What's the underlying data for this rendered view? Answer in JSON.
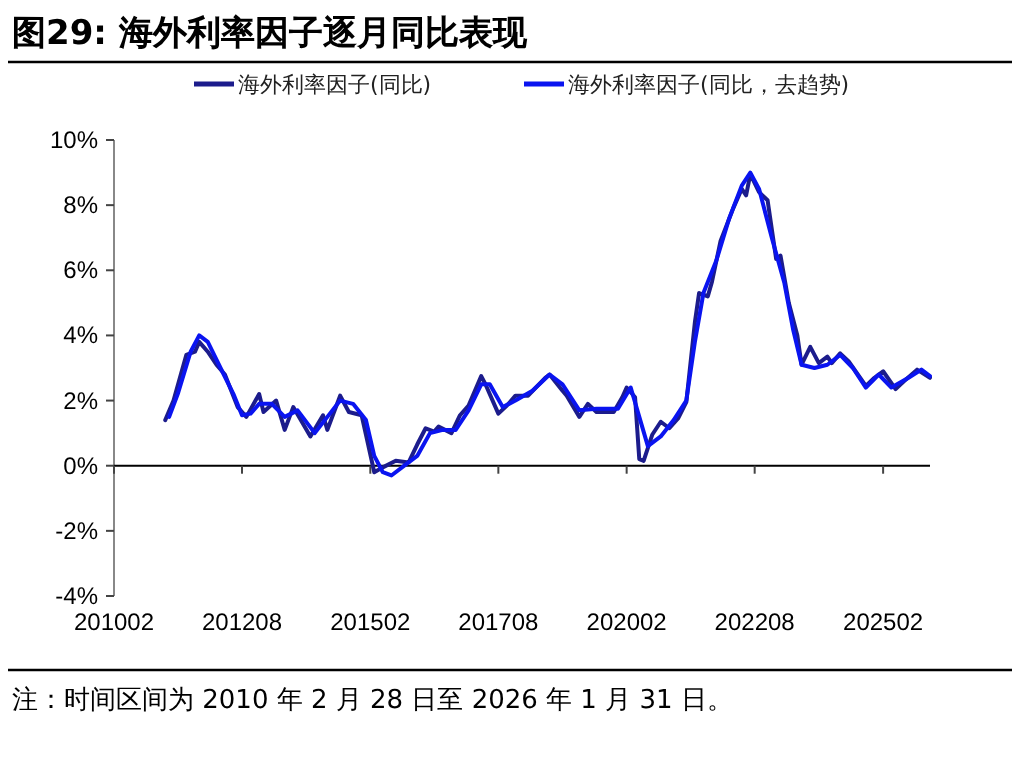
{
  "chart_data": {
    "type": "line",
    "title": "图29:  海外利率因子逐月同比表现",
    "annotations": [
      "注：时间区间为 2010 年 2 月 28 日至 2026 年 1 月 31 日。"
    ],
    "xlim": [
      "2010-02",
      "2026-01"
    ],
    "xticks": [
      {
        "value": "2010-02",
        "label": "201002"
      },
      {
        "value": "2012-08",
        "label": "201208"
      },
      {
        "value": "2015-02",
        "label": "201502"
      },
      {
        "value": "2017-08",
        "label": "201708"
      },
      {
        "value": "2020-02",
        "label": "202002"
      },
      {
        "value": "2022-08",
        "label": "202208"
      },
      {
        "value": "2025-02",
        "label": "202502"
      }
    ],
    "ylim": [
      -4,
      10
    ],
    "yticks": [
      {
        "value": -4,
        "label": "-4%"
      },
      {
        "value": -2,
        "label": "-2%"
      },
      {
        "value": 0,
        "label": "0%"
      },
      {
        "value": 2,
        "label": "2%"
      },
      {
        "value": 4,
        "label": "4%"
      },
      {
        "value": 6,
        "label": "6%"
      },
      {
        "value": 8,
        "label": "8%"
      },
      {
        "value": 10,
        "label": "10%"
      }
    ],
    "legend": "top",
    "marker": "none",
    "line_style": "solid",
    "series": [
      {
        "name": "海外利率因子(同比)",
        "color": "#1c1c8c",
        "x": [
          "2011-02",
          "2011-04",
          "2011-07",
          "2011-09",
          "2011-10",
          "2011-12",
          "2012-02",
          "2012-04",
          "2012-07",
          "2012-09",
          "2012-12",
          "2013-01",
          "2013-04",
          "2013-06",
          "2013-08",
          "2013-12",
          "2014-03",
          "2014-04",
          "2014-07",
          "2014-09",
          "2014-12",
          "2015-01",
          "2015-03",
          "2015-05",
          "2015-08",
          "2015-11",
          "2016-01",
          "2016-03",
          "2016-05",
          "2016-06",
          "2016-09",
          "2016-11",
          "2017-01",
          "2017-04",
          "2017-05",
          "2017-08",
          "2017-10",
          "2017-12",
          "2018-03",
          "2018-07",
          "2018-08",
          "2018-11",
          "2018-12",
          "2019-03",
          "2019-05",
          "2019-07",
          "2019-11",
          "2020-01",
          "2020-02",
          "2020-04",
          "2020-05",
          "2020-06",
          "2020-08",
          "2020-10",
          "2020-12",
          "2021-02",
          "2021-04",
          "2021-06",
          "2021-07",
          "2021-09",
          "2021-10",
          "2021-12",
          "2022-03",
          "2022-05",
          "2022-06",
          "2022-07",
          "2022-09",
          "2022-11",
          "2023-01",
          "2023-02",
          "2023-04",
          "2023-06",
          "2023-07",
          "2023-09",
          "2023-11",
          "2024-01",
          "2024-02",
          "2024-04",
          "2024-06",
          "2024-10",
          "2024-12",
          "2025-02",
          "2025-05",
          "2025-07",
          "2025-10",
          "2026-01"
        ],
        "values": [
          1.4,
          2.0,
          3.4,
          3.5,
          3.8,
          3.5,
          3.1,
          2.8,
          1.8,
          1.5,
          2.2,
          1.65,
          2.0,
          1.1,
          1.8,
          0.9,
          1.55,
          1.1,
          2.15,
          1.65,
          1.55,
          0.95,
          -0.2,
          -0.05,
          0.15,
          0.1,
          0.65,
          1.15,
          1.05,
          1.2,
          1.0,
          1.55,
          1.85,
          2.75,
          2.5,
          1.6,
          1.85,
          2.15,
          2.15,
          2.7,
          2.8,
          2.3,
          2.15,
          1.5,
          1.9,
          1.65,
          1.65,
          2.1,
          2.4,
          2.1,
          0.2,
          0.15,
          0.95,
          1.35,
          1.15,
          1.45,
          1.95,
          4.4,
          5.3,
          5.2,
          5.65,
          6.9,
          7.9,
          8.5,
          8.3,
          8.95,
          8.4,
          8.15,
          6.35,
          6.45,
          5.0,
          4.0,
          3.1,
          3.65,
          3.15,
          3.35,
          3.15,
          3.45,
          3.2,
          2.45,
          2.7,
          2.9,
          2.35,
          2.6,
          2.95,
          2.7
        ]
      },
      {
        "name": "海外利率因子(同比，去趋势)",
        "color": "#0a14f0",
        "x": [
          "2011-03",
          "2011-05",
          "2011-08",
          "2011-10",
          "2011-12",
          "2012-03",
          "2012-06",
          "2012-08",
          "2012-10",
          "2012-12",
          "2013-03",
          "2013-06",
          "2013-09",
          "2014-01",
          "2014-04",
          "2014-07",
          "2014-10",
          "2015-01",
          "2015-03",
          "2015-05",
          "2015-07",
          "2015-10",
          "2016-01",
          "2016-04",
          "2016-07",
          "2016-10",
          "2017-01",
          "2017-04",
          "2017-06",
          "2017-09",
          "2017-12",
          "2018-04",
          "2018-08",
          "2018-11",
          "2019-03",
          "2019-07",
          "2019-12",
          "2020-03",
          "2020-05",
          "2020-07",
          "2020-10",
          "2021-01",
          "2021-04",
          "2021-06",
          "2021-08",
          "2021-11",
          "2022-02",
          "2022-05",
          "2022-07",
          "2022-09",
          "2022-12",
          "2023-03",
          "2023-05",
          "2023-07",
          "2023-10",
          "2024-01",
          "2024-04",
          "2024-07",
          "2024-10",
          "2025-01",
          "2025-04",
          "2025-08",
          "2025-11",
          "2026-01"
        ],
        "values": [
          1.5,
          2.2,
          3.5,
          4.0,
          3.8,
          3.0,
          2.2,
          1.55,
          1.6,
          1.9,
          1.9,
          1.5,
          1.7,
          1.0,
          1.5,
          2.0,
          1.9,
          1.4,
          0.3,
          -0.2,
          -0.3,
          0.0,
          0.3,
          1.0,
          1.1,
          1.1,
          1.7,
          2.5,
          2.5,
          1.8,
          2.0,
          2.3,
          2.8,
          2.5,
          1.7,
          1.75,
          1.75,
          2.4,
          1.5,
          0.6,
          0.9,
          1.4,
          2.0,
          3.8,
          5.3,
          6.3,
          7.6,
          8.6,
          9.0,
          8.5,
          7.0,
          5.6,
          4.2,
          3.1,
          3.0,
          3.1,
          3.4,
          3.0,
          2.4,
          2.8,
          2.4,
          2.7,
          2.95,
          2.75
        ]
      }
    ]
  }
}
